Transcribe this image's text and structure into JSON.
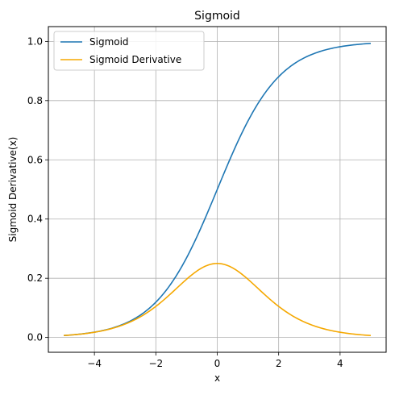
{
  "chart_data": {
    "type": "line",
    "title": "Sigmoid",
    "xlabel": "x",
    "ylabel": "Sigmoid Derivative(x)",
    "xlim": [
      -5.5,
      5.5
    ],
    "ylim": [
      -0.05,
      1.05
    ],
    "xticks": [
      -4,
      -2,
      0,
      2,
      4
    ],
    "xtick_labels": [
      "−4",
      "−2",
      "0",
      "2",
      "4"
    ],
    "yticks": [
      0.0,
      0.2,
      0.4,
      0.6,
      0.8,
      1.0
    ],
    "ytick_labels": [
      "0.0",
      "0.2",
      "0.4",
      "0.6",
      "0.8",
      "1.0"
    ],
    "grid": true,
    "legend_position": "top-left",
    "x": [
      -5,
      -4.5,
      -4,
      -3.5,
      -3,
      -2.5,
      -2,
      -1.5,
      -1,
      -0.5,
      0,
      0.5,
      1,
      1.5,
      2,
      2.5,
      3,
      3.5,
      4,
      4.5,
      5
    ],
    "series": [
      {
        "name": "Sigmoid",
        "color": "#1f77b4",
        "values": [
          0.007,
          0.011,
          0.018,
          0.029,
          0.047,
          0.076,
          0.119,
          0.182,
          0.269,
          0.378,
          0.5,
          0.622,
          0.731,
          0.818,
          0.881,
          0.924,
          0.953,
          0.971,
          0.982,
          0.989,
          0.993
        ]
      },
      {
        "name": "Sigmoid Derivative",
        "color": "#f5a800",
        "values": [
          0.007,
          0.011,
          0.018,
          0.029,
          0.045,
          0.07,
          0.105,
          0.149,
          0.197,
          0.235,
          0.25,
          0.235,
          0.197,
          0.149,
          0.105,
          0.07,
          0.045,
          0.029,
          0.018,
          0.011,
          0.007
        ]
      }
    ]
  }
}
